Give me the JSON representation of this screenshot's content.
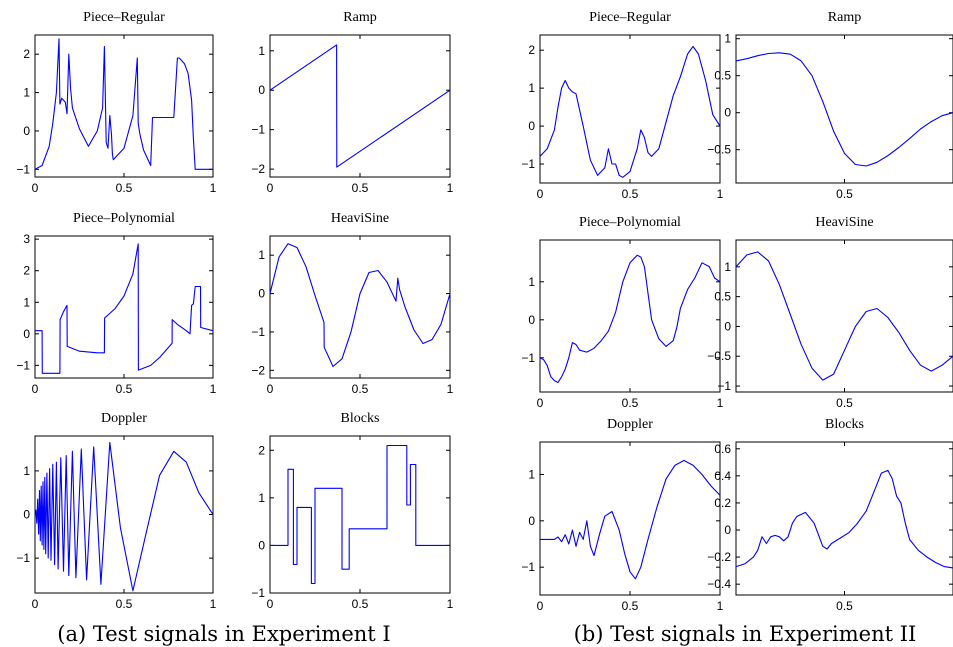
{
  "captions": [
    "(a) Test signals in Experiment I",
    "(b) Test signals in Experiment II"
  ],
  "chart_data": [
    {
      "id": "a-piece-regular",
      "type": "line",
      "title": "Piece–Regular",
      "xlim": [
        0,
        1
      ],
      "ylim": [
        -1.2,
        2.5
      ],
      "xticks": [
        0,
        0.5,
        1
      ],
      "xtick_labels": [
        "0",
        "0.5",
        "1"
      ],
      "yticks": [
        -1,
        0,
        1,
        2
      ],
      "ytick_labels": [
        "−1",
        "0",
        "1",
        "2"
      ],
      "series": [
        {
          "x": [
            0,
            0.04,
            0.08,
            0.1,
            0.12,
            0.135,
            0.14,
            0.15,
            0.17,
            0.18,
            0.19,
            0.2,
            0.21,
            0.25,
            0.3,
            0.35,
            0.38,
            0.39,
            0.4,
            0.41,
            0.42,
            0.43,
            0.435,
            0.44,
            0.45,
            0.5,
            0.55,
            0.575,
            0.58,
            0.59,
            0.61,
            0.62,
            0.64,
            0.65,
            0.66,
            0.7,
            0.74,
            0.75,
            0.76,
            0.78,
            0.8,
            0.81,
            0.82,
            0.84,
            0.86,
            0.88,
            0.89,
            0.9,
            0.95,
            0.96,
            1
          ],
          "y": [
            -1,
            -0.9,
            -0.4,
            0.2,
            1,
            2.4,
            0.7,
            0.85,
            0.75,
            0.45,
            2,
            1.1,
            0.6,
            0.05,
            -0.4,
            0,
            0.6,
            2.2,
            -0.3,
            -0.45,
            0.4,
            -0.1,
            -0.6,
            -0.75,
            -0.7,
            -0.45,
            0.4,
            1.9,
            0.2,
            -0.1,
            -0.5,
            -0.6,
            -0.8,
            -0.9,
            0.35,
            0.35,
            0.35,
            0.35,
            0.35,
            0.35,
            1.9,
            1.9,
            1.85,
            1.75,
            1.5,
            0.8,
            -0.2,
            -1,
            -1,
            -1,
            -1
          ]
        }
      ]
    },
    {
      "id": "a-ramp",
      "type": "line",
      "title": "Ramp",
      "xlim": [
        0,
        1
      ],
      "ylim": [
        -2.2,
        1.4
      ],
      "xticks": [
        0,
        0.5,
        1
      ],
      "xtick_labels": [
        "0",
        "0.5",
        "1"
      ],
      "yticks": [
        -2,
        -1,
        0,
        1
      ],
      "ytick_labels": [
        "−2",
        "−1",
        "0",
        "1"
      ],
      "series": [
        {
          "x": [
            0,
            0.37,
            0.371,
            1
          ],
          "y": [
            0,
            1.15,
            -1.95,
            0
          ]
        }
      ]
    },
    {
      "id": "a-piece-polynomial",
      "type": "line",
      "title": "Piece–Polynomial",
      "xlim": [
        0,
        1
      ],
      "ylim": [
        -1.4,
        3.1
      ],
      "xticks": [
        0,
        0.5,
        1
      ],
      "xtick_labels": [
        "0",
        "0.5",
        "1"
      ],
      "yticks": [
        -1,
        0,
        1,
        2,
        3
      ],
      "ytick_labels": [
        "−1",
        "0",
        "1",
        "2",
        "3"
      ],
      "series": [
        {
          "x": [
            0,
            0.04,
            0.041,
            0.14,
            0.141,
            0.16,
            0.18,
            0.181,
            0.25,
            0.35,
            0.39,
            0.391,
            0.45,
            0.5,
            0.55,
            0.58,
            0.581,
            0.65,
            0.7,
            0.77,
            0.771,
            0.8,
            0.85,
            0.871,
            0.88,
            0.89,
            0.9,
            0.901,
            0.93,
            0.931,
            1
          ],
          "y": [
            0.1,
            0.1,
            -1.25,
            -1.25,
            0.45,
            0.7,
            0.9,
            -0.4,
            -0.55,
            -0.6,
            -0.6,
            0.5,
            0.8,
            1.2,
            1.9,
            2.85,
            -1.15,
            -1,
            -0.75,
            -0.3,
            0.45,
            0.3,
            0.1,
            0,
            0.9,
            0.95,
            1.5,
            1.5,
            1.5,
            0.2,
            0.1
          ]
        }
      ]
    },
    {
      "id": "a-heavisine",
      "type": "line",
      "title": "HeaviSine",
      "xlim": [
        0,
        1
      ],
      "ylim": [
        -2.2,
        1.5
      ],
      "xticks": [
        0,
        0.5,
        1
      ],
      "xtick_labels": [
        "0",
        "0.5",
        "1"
      ],
      "yticks": [
        -2,
        -1,
        0,
        1
      ],
      "ytick_labels": [
        "−2",
        "−1",
        "0",
        "1"
      ],
      "series": [
        {
          "x": [
            0,
            0.05,
            0.1,
            0.15,
            0.2,
            0.25,
            0.3,
            0.301,
            0.35,
            0.4,
            0.45,
            0.5,
            0.55,
            0.6,
            0.65,
            0.7,
            0.71,
            0.72,
            0.75,
            0.8,
            0.85,
            0.9,
            0.95,
            1
          ],
          "y": [
            0,
            0.95,
            1.3,
            1.2,
            0.7,
            -0.05,
            -0.75,
            -1.4,
            -1.9,
            -1.7,
            -1,
            0,
            0.55,
            0.6,
            0.3,
            -0.2,
            0.4,
            0.1,
            -0.35,
            -0.95,
            -1.3,
            -1.2,
            -0.8,
            0
          ]
        }
      ]
    },
    {
      "id": "a-doppler",
      "type": "line",
      "title": "Doppler",
      "xlim": [
        0,
        1
      ],
      "ylim": [
        -1.8,
        1.8
      ],
      "xticks": [
        0,
        0.5,
        1
      ],
      "xtick_labels": [
        "0",
        "0.5",
        "1"
      ],
      "yticks": [
        -1,
        0,
        1
      ],
      "ytick_labels": [
        "−1",
        "0",
        "1"
      ],
      "series": [
        {
          "x": [
            0,
            0.005,
            0.01,
            0.015,
            0.02,
            0.025,
            0.03,
            0.035,
            0.04,
            0.045,
            0.05,
            0.055,
            0.06,
            0.067,
            0.074,
            0.082,
            0.09,
            0.1,
            0.11,
            0.12,
            0.13,
            0.145,
            0.16,
            0.175,
            0.19,
            0.21,
            0.23,
            0.26,
            0.29,
            0.33,
            0.37,
            0.42,
            0.48,
            0.55,
            0.62,
            0.7,
            0.78,
            0.85,
            0.92,
            1
          ],
          "y": [
            0,
            0.1,
            -0.2,
            0.35,
            -0.45,
            0.55,
            -0.6,
            0.65,
            -0.7,
            0.75,
            -0.8,
            0.85,
            -0.9,
            0.95,
            -1,
            1.05,
            -1.05,
            1.15,
            -1.15,
            1.2,
            -1.25,
            1.3,
            -1.3,
            1.35,
            -1.4,
            1.45,
            -1.45,
            1.5,
            -1.5,
            1.55,
            -1.6,
            1.65,
            -0.3,
            -1.75,
            -0.5,
            0.9,
            1.45,
            1.2,
            0.5,
            0
          ]
        }
      ]
    },
    {
      "id": "a-blocks",
      "type": "line",
      "title": "Blocks",
      "xlim": [
        0,
        1
      ],
      "ylim": [
        -1,
        2.3
      ],
      "xticks": [
        0,
        0.5,
        1
      ],
      "xtick_labels": [
        "0",
        "0.5",
        "1"
      ],
      "yticks": [
        -1,
        0,
        1,
        2
      ],
      "ytick_labels": [
        "−1",
        "0",
        "1",
        "2"
      ],
      "series": [
        {
          "x": [
            0,
            0.1,
            0.1,
            0.13,
            0.13,
            0.15,
            0.15,
            0.23,
            0.23,
            0.25,
            0.25,
            0.4,
            0.4,
            0.44,
            0.44,
            0.65,
            0.65,
            0.76,
            0.76,
            0.78,
            0.78,
            0.81,
            0.81,
            1
          ],
          "y": [
            0,
            0,
            1.6,
            1.6,
            -0.4,
            -0.4,
            0.8,
            0.8,
            -0.8,
            -0.8,
            1.2,
            1.2,
            -0.5,
            -0.5,
            0.35,
            0.35,
            2.1,
            2.1,
            0.85,
            0.85,
            1.7,
            1.7,
            0,
            0
          ]
        }
      ]
    },
    {
      "id": "b-piece-regular",
      "type": "line",
      "title": "Piece–Regular",
      "xlim": [
        0,
        1
      ],
      "ylim": [
        -1.5,
        2.4
      ],
      "xticks": [
        0,
        0.5,
        1
      ],
      "xtick_labels": [
        "0",
        "0.5",
        "1"
      ],
      "yticks": [
        -1,
        0,
        1,
        2
      ],
      "ytick_labels": [
        "−1",
        "0",
        "1",
        "2"
      ],
      "series": [
        {
          "x": [
            0,
            0.04,
            0.08,
            0.1,
            0.12,
            0.14,
            0.16,
            0.18,
            0.2,
            0.24,
            0.28,
            0.32,
            0.36,
            0.38,
            0.4,
            0.42,
            0.44,
            0.46,
            0.5,
            0.54,
            0.56,
            0.58,
            0.6,
            0.62,
            0.66,
            0.7,
            0.74,
            0.78,
            0.82,
            0.85,
            0.88,
            0.92,
            0.96,
            1
          ],
          "y": [
            -0.8,
            -0.6,
            -0.1,
            0.5,
            1,
            1.2,
            1,
            0.9,
            0.85,
            0,
            -0.9,
            -1.3,
            -1.1,
            -0.6,
            -1,
            -1,
            -1.3,
            -1.35,
            -1.2,
            -0.6,
            -0.1,
            -0.3,
            -0.7,
            -0.8,
            -0.6,
            0.1,
            0.8,
            1.3,
            1.9,
            2.1,
            1.9,
            1.2,
            0.3,
            0
          ]
        }
      ]
    },
    {
      "id": "b-ramp",
      "type": "line",
      "title": "Ramp",
      "xlim": [
        0,
        1
      ],
      "ylim": [
        -0.95,
        1.05
      ],
      "xticks": [
        0.5
      ],
      "xtick_labels": [
        "0.5"
      ],
      "yticks": [
        -0.5,
        0,
        0.5,
        1
      ],
      "ytick_labels": [
        "−0.5",
        "0",
        "0.5",
        "1"
      ],
      "series": [
        {
          "x": [
            0,
            0.05,
            0.1,
            0.15,
            0.2,
            0.25,
            0.3,
            0.35,
            0.4,
            0.45,
            0.5,
            0.55,
            0.6,
            0.65,
            0.7,
            0.75,
            0.8,
            0.85,
            0.9,
            0.95,
            1
          ],
          "y": [
            0.7,
            0.73,
            0.77,
            0.8,
            0.81,
            0.79,
            0.7,
            0.5,
            0.15,
            -0.25,
            -0.55,
            -0.7,
            -0.72,
            -0.67,
            -0.58,
            -0.47,
            -0.35,
            -0.22,
            -0.12,
            -0.04,
            0
          ]
        }
      ]
    },
    {
      "id": "b-piece-polynomial",
      "type": "line",
      "title": "Piece–Polynomial",
      "xlim": [
        0,
        1
      ],
      "ylim": [
        -1.9,
        2.1
      ],
      "xticks": [
        0,
        0.5,
        1
      ],
      "xtick_labels": [
        "0",
        "0.5",
        "1"
      ],
      "yticks": [
        -1,
        0,
        1
      ],
      "ytick_labels": [
        "−1",
        "0",
        "1"
      ],
      "series": [
        {
          "x": [
            0,
            0.02,
            0.04,
            0.06,
            0.08,
            0.1,
            0.12,
            0.14,
            0.16,
            0.18,
            0.2,
            0.22,
            0.26,
            0.3,
            0.34,
            0.38,
            0.42,
            0.46,
            0.5,
            0.54,
            0.56,
            0.58,
            0.6,
            0.62,
            0.66,
            0.7,
            0.74,
            0.76,
            0.78,
            0.82,
            0.86,
            0.9,
            0.94,
            0.97,
            1
          ],
          "y": [
            -1,
            -1.05,
            -1.2,
            -1.5,
            -1.6,
            -1.65,
            -1.5,
            -1.3,
            -1,
            -0.6,
            -0.65,
            -0.8,
            -0.85,
            -0.75,
            -0.55,
            -0.3,
            0.2,
            1,
            1.5,
            1.7,
            1.65,
            1.4,
            0.7,
            0,
            -0.5,
            -0.7,
            -0.55,
            -0.2,
            0.3,
            0.8,
            1.1,
            1.5,
            1.4,
            1.1,
            1
          ]
        }
      ]
    },
    {
      "id": "b-heavisine",
      "type": "line",
      "title": "HeaviSine",
      "xlim": [
        0,
        1
      ],
      "ylim": [
        -1.1,
        1.45
      ],
      "xticks": [
        0.5
      ],
      "xtick_labels": [
        "0.5"
      ],
      "yticks": [
        -1,
        -0.5,
        0,
        0.5,
        1
      ],
      "ytick_labels": [
        "−1",
        "−0.5",
        "0",
        "0.5",
        "1"
      ],
      "series": [
        {
          "x": [
            0,
            0.05,
            0.1,
            0.15,
            0.2,
            0.25,
            0.3,
            0.35,
            0.4,
            0.45,
            0.5,
            0.55,
            0.6,
            0.65,
            0.7,
            0.72,
            0.75,
            0.8,
            0.85,
            0.9,
            0.95,
            1
          ],
          "y": [
            1,
            1.2,
            1.25,
            1.1,
            0.7,
            0.2,
            -0.3,
            -0.7,
            -0.9,
            -0.8,
            -0.4,
            0,
            0.25,
            0.3,
            0.15,
            0.05,
            -0.1,
            -0.4,
            -0.65,
            -0.75,
            -0.65,
            -0.5
          ]
        }
      ]
    },
    {
      "id": "b-doppler",
      "type": "line",
      "title": "Doppler",
      "xlim": [
        0,
        1
      ],
      "ylim": [
        -1.6,
        1.7
      ],
      "xticks": [
        0,
        0.5,
        1
      ],
      "xtick_labels": [
        "0",
        "0.5",
        "1"
      ],
      "yticks": [
        -1,
        0,
        1
      ],
      "ytick_labels": [
        "−1",
        "0",
        "1"
      ],
      "series": [
        {
          "x": [
            0,
            0.08,
            0.1,
            0.12,
            0.14,
            0.16,
            0.18,
            0.2,
            0.22,
            0.24,
            0.26,
            0.28,
            0.3,
            0.33,
            0.36,
            0.4,
            0.44,
            0.47,
            0.5,
            0.53,
            0.56,
            0.6,
            0.65,
            0.7,
            0.75,
            0.8,
            0.85,
            0.9,
            0.95,
            1
          ],
          "y": [
            -0.4,
            -0.4,
            -0.35,
            -0.45,
            -0.3,
            -0.5,
            -0.2,
            -0.55,
            -0.25,
            -0.4,
            0,
            -0.55,
            -0.75,
            -0.3,
            0.1,
            0.2,
            -0.2,
            -0.7,
            -1.1,
            -1.25,
            -1,
            -0.4,
            0.3,
            0.9,
            1.2,
            1.3,
            1.2,
            1,
            0.75,
            0.55
          ]
        }
      ]
    },
    {
      "id": "b-blocks",
      "type": "line",
      "title": "Blocks",
      "xlim": [
        0,
        1
      ],
      "ylim": [
        -0.48,
        0.65
      ],
      "xticks": [
        0.5
      ],
      "xtick_labels": [
        "0.5"
      ],
      "yticks": [
        -0.4,
        -0.2,
        0,
        0.2,
        0.4,
        0.6
      ],
      "ytick_labels": [
        "−0.4",
        "−0.2",
        "0",
        "0.2",
        "0.4",
        "0.6"
      ],
      "series": [
        {
          "x": [
            0,
            0.04,
            0.08,
            0.1,
            0.12,
            0.14,
            0.16,
            0.18,
            0.2,
            0.22,
            0.24,
            0.26,
            0.28,
            0.32,
            0.36,
            0.4,
            0.42,
            0.44,
            0.48,
            0.52,
            0.56,
            0.6,
            0.64,
            0.67,
            0.7,
            0.72,
            0.74,
            0.76,
            0.78,
            0.8,
            0.84,
            0.88,
            0.92,
            0.96,
            1
          ],
          "y": [
            -0.27,
            -0.25,
            -0.2,
            -0.15,
            -0.05,
            -0.1,
            -0.05,
            -0.04,
            -0.05,
            -0.08,
            -0.05,
            0.05,
            0.1,
            0.13,
            0.05,
            -0.12,
            -0.14,
            -0.1,
            -0.06,
            -0.02,
            0.05,
            0.14,
            0.3,
            0.42,
            0.44,
            0.38,
            0.25,
            0.2,
            0.05,
            -0.07,
            -0.15,
            -0.2,
            -0.24,
            -0.27,
            -0.28
          ]
        }
      ]
    }
  ]
}
